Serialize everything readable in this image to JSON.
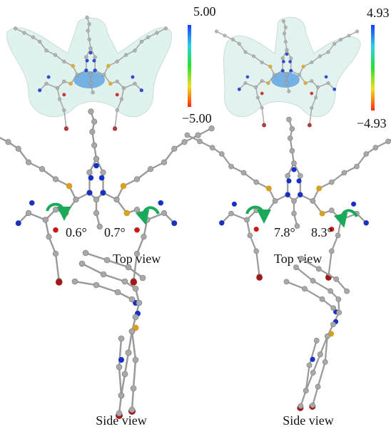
{
  "panels": [
    {
      "colorbar": {
        "max": "5.00",
        "min": "−5.00"
      },
      "angles": [
        "0.6°",
        "0.7°"
      ],
      "top_caption": "Top view",
      "side_caption": "Side view"
    },
    {
      "colorbar": {
        "max": "4.93",
        "min": "−4.93"
      },
      "angles": [
        "7.8°",
        "8.3°"
      ],
      "top_caption": "Top view",
      "side_caption": "Side view"
    }
  ]
}
